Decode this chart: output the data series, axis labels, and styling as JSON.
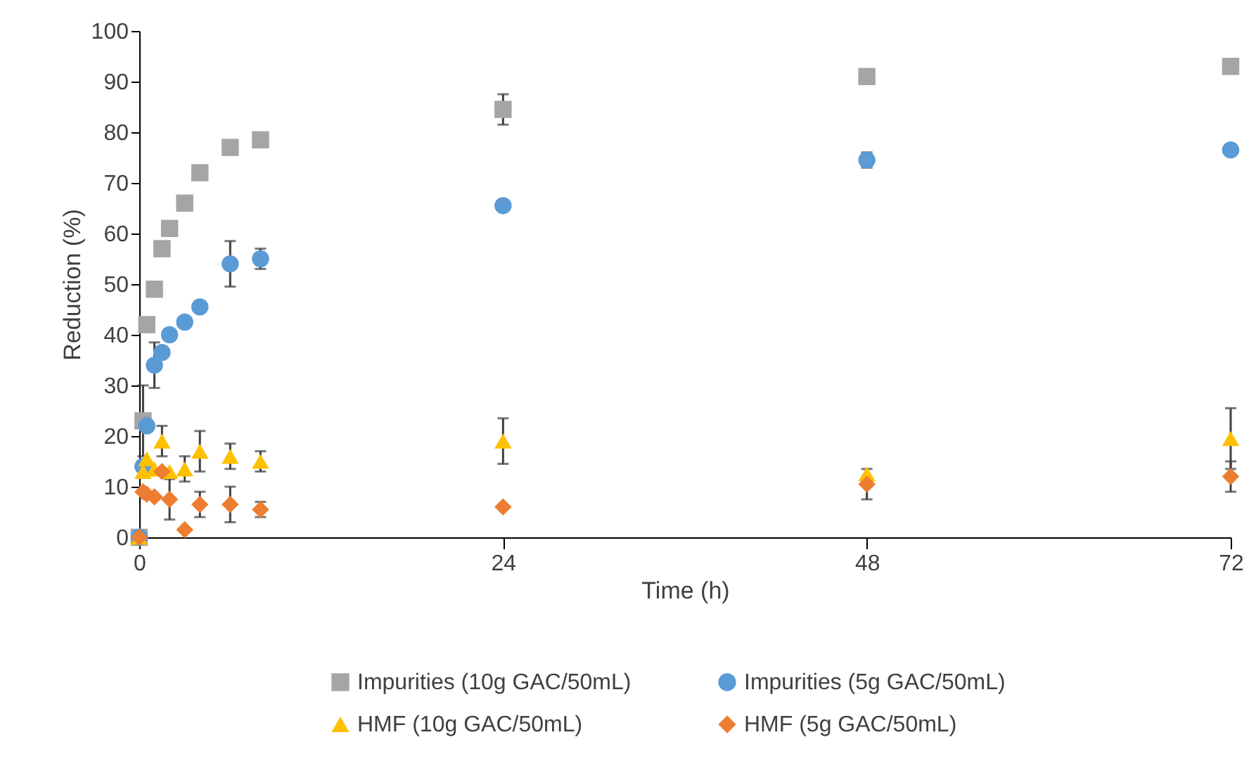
{
  "chart_data": {
    "type": "scatter",
    "xlabel": "Time (h)",
    "ylabel": "Reduction (%)",
    "xlim": [
      0,
      72
    ],
    "xticks": [
      0,
      24,
      48,
      72
    ],
    "ylim": [
      0,
      100
    ],
    "yticks": [
      0,
      10,
      20,
      30,
      40,
      50,
      60,
      70,
      80,
      90,
      100
    ],
    "grid": false,
    "legend": "bottom",
    "series": [
      {
        "name": "Impurities (10g GAC/50mL)",
        "color": "#a5a5a5",
        "marker": "square",
        "x": [
          0,
          0.25,
          0.5,
          1,
          1.5,
          2,
          3,
          4,
          6,
          8,
          24,
          48,
          72
        ],
        "values": [
          0,
          23,
          42,
          49,
          57,
          61,
          66,
          72,
          77,
          78.5,
          84.5,
          91,
          93
        ],
        "errors": [
          null,
          7,
          null,
          null,
          null,
          null,
          null,
          null,
          null,
          null,
          3,
          null,
          null
        ]
      },
      {
        "name": "Impurities (5g GAC/50mL)",
        "color": "#5b9bd5",
        "marker": "circle",
        "x": [
          0,
          0.25,
          0.5,
          1,
          1.5,
          2,
          3,
          4,
          6,
          8,
          24,
          48,
          72
        ],
        "values": [
          0,
          14,
          22,
          34,
          36.5,
          40,
          42.5,
          45.5,
          54,
          55,
          65.5,
          74.5,
          76.5
        ],
        "errors": [
          null,
          null,
          null,
          4.5,
          null,
          null,
          null,
          null,
          4.5,
          2,
          null,
          1.5,
          null
        ]
      },
      {
        "name": "HMF (10g GAC/50mL)",
        "color": "#ffc000",
        "marker": "triangle",
        "x": [
          0,
          0.25,
          0.5,
          1,
          1.5,
          2,
          3,
          4,
          6,
          8,
          24,
          48,
          72
        ],
        "values": [
          0,
          13,
          15.5,
          13.5,
          19,
          13,
          13.5,
          17,
          16,
          15,
          19,
          12.5,
          19.5
        ],
        "errors": [
          null,
          null,
          null,
          null,
          3,
          null,
          2.5,
          4,
          2.5,
          2,
          4.5,
          null,
          6
        ]
      },
      {
        "name": "HMF (5g GAC/50mL)",
        "color": "#ed7d31",
        "marker": "diamond",
        "x": [
          0,
          0.25,
          0.5,
          1,
          1.5,
          2,
          3,
          4,
          6,
          8,
          24,
          48,
          72
        ],
        "values": [
          0,
          9,
          8.5,
          8,
          13,
          7.5,
          1.5,
          6.5,
          6.5,
          5.5,
          6,
          10.5,
          12
        ],
        "errors": [
          null,
          null,
          null,
          null,
          null,
          4,
          null,
          2.5,
          3.5,
          1.5,
          null,
          3,
          3
        ]
      }
    ]
  }
}
